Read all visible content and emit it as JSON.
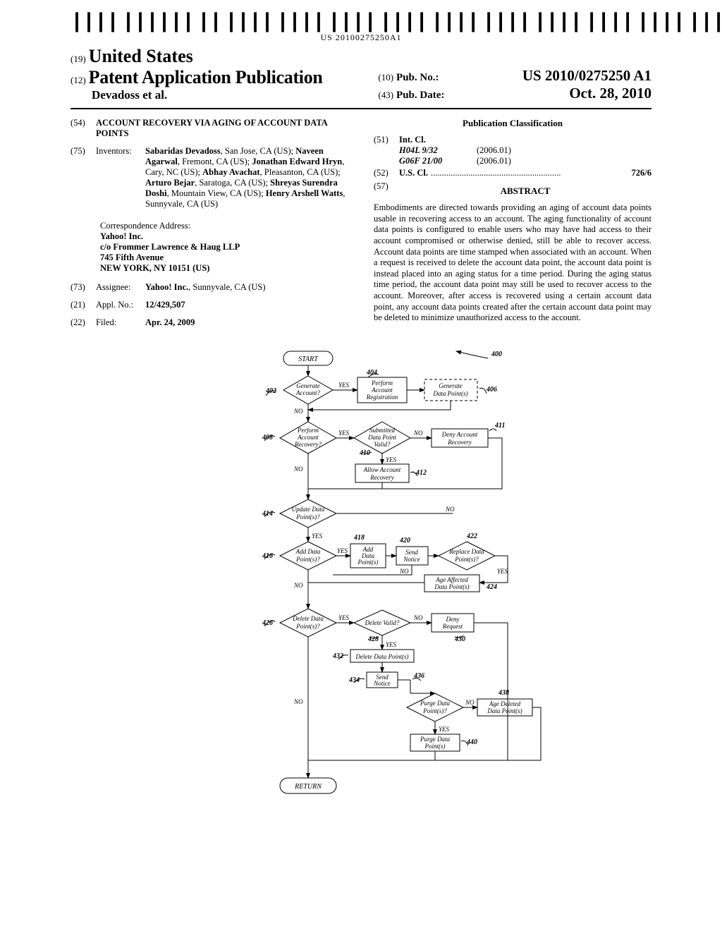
{
  "barcode_text": "US 20100275250A1",
  "header": {
    "prefix19": "(19)",
    "country": "United States",
    "prefix12": "(12)",
    "pub_type": "Patent Application Publication",
    "authors": "Devadoss et al.",
    "prefix10": "(10)",
    "pubno_label": "Pub. No.:",
    "pubno_value": "US 2010/0275250 A1",
    "prefix43": "(43)",
    "pubdate_label": "Pub. Date:",
    "pubdate_value": "Oct. 28, 2010"
  },
  "left": {
    "n54": "(54)",
    "title": "ACCOUNT RECOVERY VIA AGING OF ACCOUNT DATA POINTS",
    "n75": "(75)",
    "inv_label": "Inventors:",
    "inventors_html": "<b>Sabaridas Devadoss</b>, San Jose, CA (US); <b>Naveen Agarwal</b>, Fremont, CA (US); <b>Jonathan Edward Hryn</b>, Cary, NC (US); <b>Abhay Avachat</b>, Pleasanton, CA (US); <b>Arturo Bejar</b>, Saratoga, CA (US); <b>Shreyas Surendra Doshi</b>, Mountain View, CA (US); <b>Henry Arshell Watts</b>, Sunnyvale, CA (US)",
    "corr_label": "Correspondence Address:",
    "corr1": "Yahoo! Inc.",
    "corr2": "c/o Frommer Lawrence & Haug LLP",
    "corr3": "745 Fifth Avenue",
    "corr4": "NEW YORK, NY 10151 (US)",
    "n73": "(73)",
    "assignee_label": "Assignee:",
    "assignee": "Yahoo! Inc.",
    "assignee_loc": ", Sunnyvale, CA (US)",
    "n21": "(21)",
    "applno_label": "Appl. No.:",
    "applno": "12/429,507",
    "n22": "(22)",
    "filed_label": "Filed:",
    "filed": "Apr. 24, 2009"
  },
  "right": {
    "pubclass": "Publication Classification",
    "n51": "(51)",
    "intcl_label": "Int. Cl.",
    "intcl1": "H04L 9/32",
    "intcl1_date": "(2006.01)",
    "intcl2": "G06F 21/00",
    "intcl2_date": "(2006.01)",
    "n52": "(52)",
    "uscl_label": "U.S. Cl.",
    "uscl_value": "726/6",
    "n57": "(57)",
    "abstract_title": "ABSTRACT",
    "abstract": "Embodiments are directed towards providing an aging of account data points usable in recovering access to an account. The aging functionality of account data points is configured to enable users who may have had access to their account compromised or otherwise denied, still be able to recover access. Account data points are time stamped when associated with an account. When a request is received to delete the account data point, the account data point is instead placed into an aging status for a time period. During the aging status time period, the account data point may still be used to recover access to the account. Moreover, after access is recovered using a certain account data point, any account data points created after the certain account data point may be deleted to minimize unauthorized access to the account."
  },
  "flowchart": {
    "fig_num": "400",
    "nodes": {
      "start": "START",
      "402": "Generate Account?",
      "404": "Perform Account Registration",
      "406": "Generate Data Point(s)",
      "408": "Perform Account Recovery?",
      "410": "Submitted Data Point Valid?",
      "411": "Deny Account Recovery",
      "412": "Allow Account Recovery",
      "414": "Update Data Point(s)?",
      "416": "Add Data Point(s)?",
      "418": "Add Data Point(s)",
      "420": "Send Notice",
      "422": "Replace Data Point(s)?",
      "424": "Age Affected Data Point(s)",
      "426": "Delete Data Point(s)?",
      "428": "Delete Valid?",
      "430": "Deny Request",
      "432": "Delete Data Point(s)",
      "434": "Send Notice",
      "436": "Purge Data Point(s)?",
      "438": "Age Deleted Data Point(s)",
      "440": "Purge Data Point(s)",
      "return": "RETURN"
    },
    "labels": {
      "yes": "YES",
      "no": "NO",
      "n402": "402",
      "n404": "404",
      "n406": "406",
      "n408": "408",
      "n410": "410",
      "n411": "411",
      "n412": "412",
      "n414": "414",
      "n416": "416",
      "n418": "418",
      "n420": "420",
      "n422": "422",
      "n424": "424",
      "n426": "426",
      "n428": "428",
      "n430": "430",
      "n432": "432",
      "n434": "434",
      "n436": "436",
      "n438": "438",
      "n440": "440"
    }
  }
}
